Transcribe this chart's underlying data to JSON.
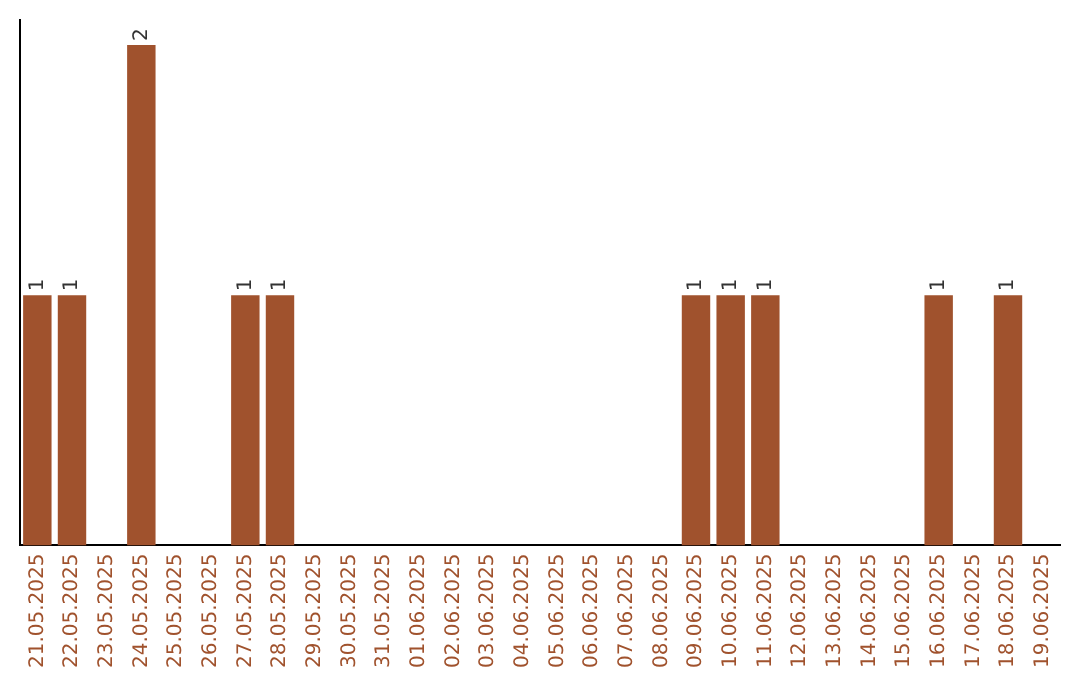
{
  "chart_data": {
    "type": "bar",
    "categories": [
      "21.05.2025",
      "22.05.2025",
      "23.05.2025",
      "24.05.2025",
      "25.05.2025",
      "26.05.2025",
      "27.05.2025",
      "28.05.2025",
      "29.05.2025",
      "30.05.2025",
      "31.05.2025",
      "01.06.2025",
      "02.06.2025",
      "03.06.2025",
      "04.06.2025",
      "05.06.2025",
      "06.06.2025",
      "07.06.2025",
      "08.06.2025",
      "09.06.2025",
      "10.06.2025",
      "11.06.2025",
      "12.06.2025",
      "13.06.2025",
      "14.06.2025",
      "15.06.2025",
      "16.06.2025",
      "17.06.2025",
      "18.06.2025",
      "19.06.2025"
    ],
    "values": [
      1,
      1,
      0,
      2,
      0,
      0,
      1,
      1,
      0,
      0,
      0,
      0,
      0,
      0,
      0,
      0,
      0,
      0,
      0,
      1,
      1,
      1,
      0,
      0,
      0,
      0,
      1,
      0,
      1,
      0
    ],
    "value_labels": [
      "1",
      "1",
      null,
      "2",
      null,
      null,
      "1",
      "1",
      null,
      null,
      null,
      null,
      null,
      null,
      null,
      null,
      null,
      null,
      null,
      "1",
      "1",
      "1",
      null,
      null,
      null,
      null,
      "1",
      null,
      "1",
      null
    ],
    "color": "#a0522d",
    "ylim": [
      0,
      2.1
    ],
    "tick_labels": "x",
    "grid": false,
    "legend": false
  }
}
